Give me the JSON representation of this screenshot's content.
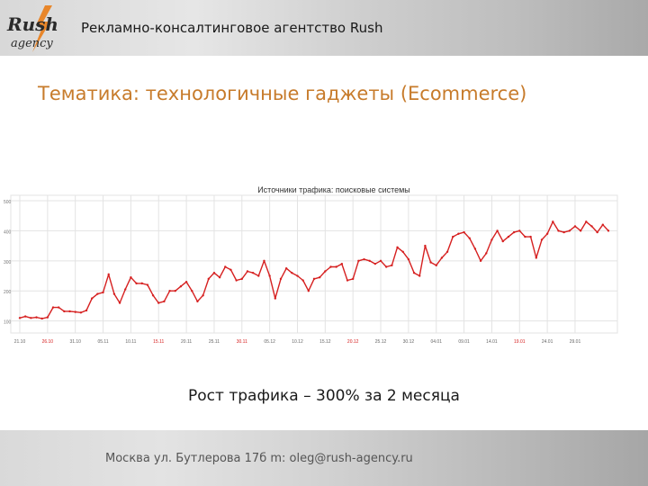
{
  "header": {
    "title": "Рекламно-консалтинговое агентство Rush",
    "logo_text": "Rush agency",
    "logo_icon": "lightning-bolt-icon"
  },
  "slide": {
    "title": "Тематика: технологичные гаджеты (Ecommerce)",
    "caption": "Рост трафика – 300% за 2 месяца"
  },
  "footer": {
    "text": "Москва ул. Бутлерова 17б m: oleg@rush-agency.ru"
  },
  "colors": {
    "accent": "#c77b2b",
    "line": "#d62020",
    "grid": "#e3e3e3"
  },
  "chart_data": {
    "type": "line",
    "title": "Источники трафика: поисковые системы",
    "xlabel": "",
    "ylabel": "",
    "ylim": [
      60,
      500
    ],
    "yticks": [
      100,
      200,
      300,
      400,
      500
    ],
    "grid": true,
    "x_ticks": [
      {
        "label": "21.10",
        "index": 0,
        "highlight": false
      },
      {
        "label": "26.10",
        "index": 5,
        "highlight": true
      },
      {
        "label": "31.10",
        "index": 10,
        "highlight": false
      },
      {
        "label": "05.11",
        "index": 15,
        "highlight": false
      },
      {
        "label": "10.11",
        "index": 20,
        "highlight": false
      },
      {
        "label": "15.11",
        "index": 25,
        "highlight": true
      },
      {
        "label": "20.11",
        "index": 30,
        "highlight": false
      },
      {
        "label": "25.11",
        "index": 35,
        "highlight": false
      },
      {
        "label": "30.11",
        "index": 40,
        "highlight": true
      },
      {
        "label": "05.12",
        "index": 45,
        "highlight": false
      },
      {
        "label": "10.12",
        "index": 50,
        "highlight": false
      },
      {
        "label": "15.12",
        "index": 55,
        "highlight": false
      },
      {
        "label": "20.12",
        "index": 60,
        "highlight": true
      },
      {
        "label": "25.12",
        "index": 65,
        "highlight": false
      },
      {
        "label": "30.12",
        "index": 70,
        "highlight": false
      },
      {
        "label": "04.01",
        "index": 75,
        "highlight": false
      },
      {
        "label": "09.01",
        "index": 80,
        "highlight": false
      },
      {
        "label": "14.01",
        "index": 85,
        "highlight": false
      },
      {
        "label": "19.01",
        "index": 90,
        "highlight": true
      },
      {
        "label": "24.01",
        "index": 95,
        "highlight": false
      },
      {
        "label": "29.01",
        "index": 100,
        "highlight": false
      }
    ],
    "series": [
      {
        "values": [
          110,
          115,
          110,
          112,
          108,
          112,
          145,
          145,
          132,
          132,
          130,
          128,
          135,
          175,
          190,
          195,
          255,
          190,
          160,
          205,
          245,
          225,
          225,
          220,
          185,
          160,
          165,
          200,
          200,
          215,
          230,
          200,
          165,
          185,
          240,
          260,
          245,
          280,
          270,
          235,
          240,
          265,
          260,
          250,
          300,
          250,
          175,
          240,
          275,
          260,
          250,
          235,
          200,
          240,
          245,
          265,
          280,
          280,
          290,
          235,
          240,
          300,
          305,
          300,
          290,
          300,
          280,
          285,
          345,
          330,
          305,
          260,
          250,
          350,
          295,
          285,
          310,
          330,
          380,
          390,
          395,
          375,
          340,
          300,
          325,
          370,
          400,
          365,
          380,
          395,
          400,
          380,
          380,
          310,
          370,
          390,
          430,
          400,
          395,
          400,
          415,
          400,
          430,
          415,
          395,
          420,
          400
        ]
      }
    ]
  }
}
